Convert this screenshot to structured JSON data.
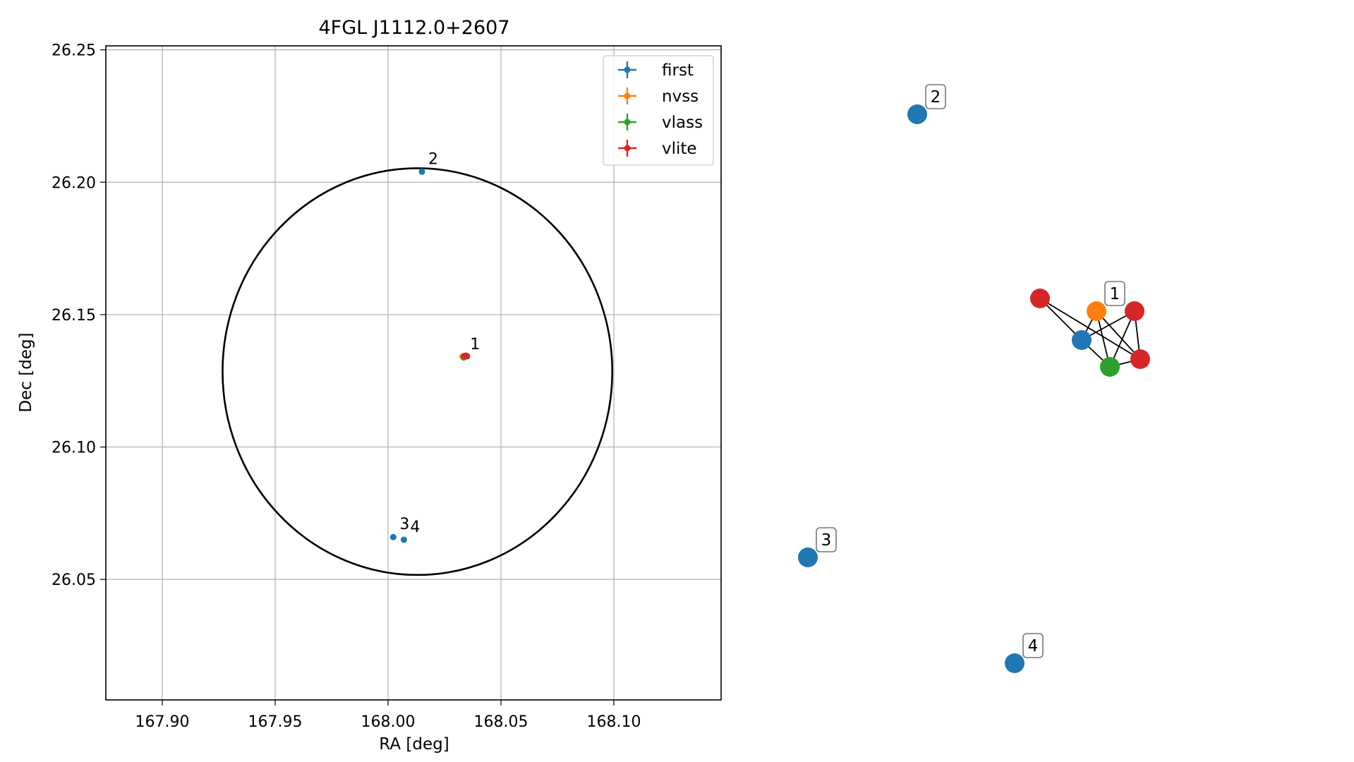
{
  "chart_data": [
    {
      "type": "scatter",
      "title": "4FGL J1112.0+2607",
      "xlabel": "RA [deg]",
      "ylabel": "Dec [deg]",
      "xlim": [
        167.875,
        168.1475
      ],
      "ylim": [
        26.0045,
        26.2515
      ],
      "xticks": [
        167.9,
        167.95,
        168.0,
        168.05,
        168.1
      ],
      "xtick_labels": [
        "167.90",
        "167.95",
        "168.00",
        "168.05",
        "168.10"
      ],
      "yticks": [
        26.05,
        26.1,
        26.15,
        26.2,
        26.25
      ],
      "ytick_labels": [
        "26.05",
        "26.10",
        "26.15",
        "26.20",
        "26.25"
      ],
      "grid": true,
      "legend_position": "top-right",
      "ellipse": {
        "center": [
          168.013,
          26.1285
        ],
        "ra_radius": 0.0863,
        "dec_radius": 0.0768,
        "color": "#000000"
      },
      "series": [
        {
          "name": "first",
          "color": "#1f77b4",
          "points": [
            [
              168.0335,
              26.134
            ],
            [
              168.015,
              26.204
            ],
            [
              168.0023,
              26.066
            ],
            [
              168.007,
              26.065
            ]
          ]
        },
        {
          "name": "nvss",
          "color": "#ff7f0e",
          "points": [
            [
              168.033,
              26.1342
            ]
          ]
        },
        {
          "name": "vlass",
          "color": "#2ca02c",
          "points": [
            [
              168.0335,
              26.1338
            ]
          ]
        },
        {
          "name": "vlite",
          "color": "#d62728",
          "points": [
            [
              168.0345,
              26.1345
            ],
            [
              168.0338,
              26.1344
            ],
            [
              168.035,
              26.1343
            ]
          ]
        }
      ],
      "annotations": [
        {
          "text": "1",
          "x": 168.0335,
          "y": 26.134
        },
        {
          "text": "2",
          "x": 168.015,
          "y": 26.204
        },
        {
          "text": "3",
          "x": 168.0023,
          "y": 26.066
        },
        {
          "text": "4",
          "x": 168.007,
          "y": 26.065
        }
      ]
    },
    {
      "type": "network",
      "nodes": [
        {
          "id": "f1",
          "series": "first",
          "color": "#1f77b4"
        },
        {
          "id": "n1",
          "series": "nvss",
          "color": "#ff7f0e"
        },
        {
          "id": "v1",
          "series": "vlass",
          "color": "#2ca02c"
        },
        {
          "id": "l1",
          "series": "vlite",
          "color": "#d62728"
        },
        {
          "id": "l2",
          "series": "vlite",
          "color": "#d62728"
        },
        {
          "id": "l3",
          "series": "vlite",
          "color": "#d62728"
        },
        {
          "id": "f2",
          "series": "first",
          "color": "#1f77b4"
        },
        {
          "id": "f3",
          "series": "first",
          "color": "#1f77b4"
        },
        {
          "id": "f4",
          "series": "first",
          "color": "#1f77b4"
        }
      ],
      "edges": [
        [
          "l1",
          "f1"
        ],
        [
          "l1",
          "l3"
        ],
        [
          "f1",
          "n1"
        ],
        [
          "f1",
          "l2"
        ],
        [
          "f1",
          "v1"
        ],
        [
          "n1",
          "v1"
        ],
        [
          "n1",
          "l3"
        ],
        [
          "l2",
          "v1"
        ],
        [
          "l2",
          "l3"
        ],
        [
          "v1",
          "l3"
        ]
      ],
      "labels": [
        {
          "text": "1",
          "node": "n1"
        },
        {
          "text": "2",
          "node": "f2"
        },
        {
          "text": "3",
          "node": "f3"
        },
        {
          "text": "4",
          "node": "f4"
        }
      ]
    }
  ]
}
